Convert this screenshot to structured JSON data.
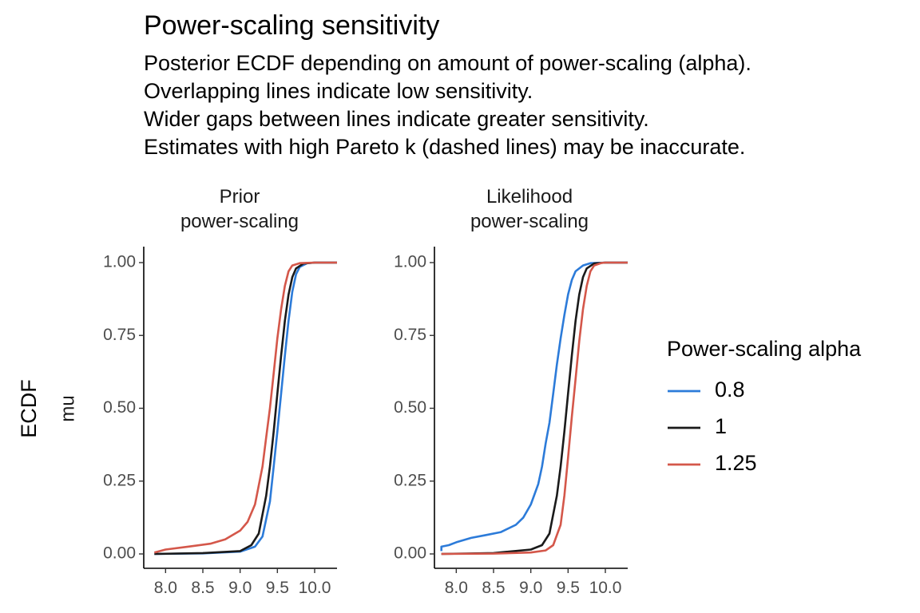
{
  "title": "Power-scaling sensitivity",
  "subtitle_lines": [
    "Posterior ECDF depending on amount of power-scaling (alpha).",
    "Overlapping lines indicate low sensitivity.",
    "Wider gaps between lines indicate greater sensitivity.",
    "Estimates with high Pareto k (dashed lines) may be inaccurate."
  ],
  "chart_data": {
    "type": "line",
    "ylabel": "ECDF",
    "row_label": "mu",
    "xlim": [
      7.75,
      10.3
    ],
    "ylim": [
      0,
      1
    ],
    "x_ticks": [
      8.0,
      8.5,
      9.0,
      9.5,
      10.0
    ],
    "x_tick_labels": [
      "8.0",
      "8.5",
      "9.0",
      "9.5",
      "10.0"
    ],
    "y_ticks": [
      0,
      0.25,
      0.5,
      0.75,
      1.0
    ],
    "y_tick_labels": [
      "0.00",
      "0.25",
      "0.50",
      "0.75",
      "1.00"
    ],
    "legend": {
      "title": "Power-scaling alpha",
      "position": "right",
      "entries": [
        {
          "label": "0.8",
          "color": "#2c7bd9"
        },
        {
          "label": "1",
          "color": "#1a1a1a"
        },
        {
          "label": "1.25",
          "color": "#d4574a"
        }
      ]
    },
    "panels": [
      {
        "label_lines": [
          "Prior",
          "power-scaling"
        ],
        "series": [
          {
            "alpha": "0.8",
            "color": "#2c7bd9",
            "points": [
              [
                7.85,
                0
              ],
              [
                8.5,
                0.002
              ],
              [
                9.0,
                0.008
              ],
              [
                9.2,
                0.025
              ],
              [
                9.3,
                0.06
              ],
              [
                9.4,
                0.18
              ],
              [
                9.45,
                0.3
              ],
              [
                9.5,
                0.42
              ],
              [
                9.55,
                0.55
              ],
              [
                9.6,
                0.68
              ],
              [
                9.65,
                0.8
              ],
              [
                9.7,
                0.9
              ],
              [
                9.75,
                0.96
              ],
              [
                9.8,
                0.985
              ],
              [
                9.9,
                0.998
              ],
              [
                10.0,
                1.0
              ],
              [
                10.3,
                1.0
              ]
            ]
          },
          {
            "alpha": "1",
            "color": "#1a1a1a",
            "points": [
              [
                7.85,
                0
              ],
              [
                8.5,
                0.003
              ],
              [
                9.0,
                0.01
              ],
              [
                9.15,
                0.03
              ],
              [
                9.25,
                0.07
              ],
              [
                9.35,
                0.2
              ],
              [
                9.4,
                0.3
              ],
              [
                9.45,
                0.42
              ],
              [
                9.5,
                0.55
              ],
              [
                9.55,
                0.68
              ],
              [
                9.6,
                0.8
              ],
              [
                9.65,
                0.89
              ],
              [
                9.7,
                0.95
              ],
              [
                9.75,
                0.98
              ],
              [
                9.85,
                0.997
              ],
              [
                10.0,
                1.0
              ],
              [
                10.3,
                1.0
              ]
            ]
          },
          {
            "alpha": "1.25",
            "color": "#d4574a",
            "points": [
              [
                7.85,
                0.005
              ],
              [
                8.0,
                0.015
              ],
              [
                8.3,
                0.025
              ],
              [
                8.6,
                0.035
              ],
              [
                8.8,
                0.05
              ],
              [
                9.0,
                0.08
              ],
              [
                9.1,
                0.11
              ],
              [
                9.2,
                0.17
              ],
              [
                9.3,
                0.3
              ],
              [
                9.35,
                0.4
              ],
              [
                9.4,
                0.5
              ],
              [
                9.45,
                0.62
              ],
              [
                9.5,
                0.74
              ],
              [
                9.55,
                0.84
              ],
              [
                9.6,
                0.92
              ],
              [
                9.65,
                0.97
              ],
              [
                9.7,
                0.99
              ],
              [
                9.8,
                0.998
              ],
              [
                10.0,
                1.0
              ],
              [
                10.3,
                1.0
              ]
            ]
          }
        ]
      },
      {
        "label_lines": [
          "Likelihood",
          "power-scaling"
        ],
        "series": [
          {
            "alpha": "0.8",
            "color": "#2c7bd9",
            "points": [
              [
                7.8,
                0.01
              ],
              [
                7.8,
                0.025
              ],
              [
                7.9,
                0.03
              ],
              [
                8.0,
                0.04
              ],
              [
                8.2,
                0.055
              ],
              [
                8.4,
                0.065
              ],
              [
                8.6,
                0.075
              ],
              [
                8.8,
                0.1
              ],
              [
                8.9,
                0.125
              ],
              [
                9.0,
                0.17
              ],
              [
                9.1,
                0.24
              ],
              [
                9.15,
                0.3
              ],
              [
                9.2,
                0.38
              ],
              [
                9.25,
                0.45
              ],
              [
                9.3,
                0.55
              ],
              [
                9.35,
                0.65
              ],
              [
                9.4,
                0.74
              ],
              [
                9.45,
                0.82
              ],
              [
                9.5,
                0.89
              ],
              [
                9.55,
                0.94
              ],
              [
                9.6,
                0.97
              ],
              [
                9.7,
                0.99
              ],
              [
                9.8,
                0.998
              ],
              [
                10.0,
                1.0
              ],
              [
                10.3,
                1.0
              ]
            ]
          },
          {
            "alpha": "1",
            "color": "#1a1a1a",
            "points": [
              [
                7.8,
                0
              ],
              [
                8.5,
                0.003
              ],
              [
                9.0,
                0.015
              ],
              [
                9.15,
                0.03
              ],
              [
                9.25,
                0.07
              ],
              [
                9.35,
                0.2
              ],
              [
                9.4,
                0.3
              ],
              [
                9.45,
                0.42
              ],
              [
                9.5,
                0.55
              ],
              [
                9.55,
                0.68
              ],
              [
                9.6,
                0.8
              ],
              [
                9.65,
                0.89
              ],
              [
                9.7,
                0.95
              ],
              [
                9.75,
                0.98
              ],
              [
                9.85,
                0.997
              ],
              [
                10.0,
                1.0
              ],
              [
                10.3,
                1.0
              ]
            ]
          },
          {
            "alpha": "1.25",
            "color": "#d4574a",
            "points": [
              [
                7.8,
                0
              ],
              [
                8.5,
                0.001
              ],
              [
                9.0,
                0.005
              ],
              [
                9.2,
                0.012
              ],
              [
                9.3,
                0.03
              ],
              [
                9.4,
                0.1
              ],
              [
                9.45,
                0.2
              ],
              [
                9.5,
                0.33
              ],
              [
                9.55,
                0.47
              ],
              [
                9.6,
                0.6
              ],
              [
                9.65,
                0.73
              ],
              [
                9.7,
                0.84
              ],
              [
                9.75,
                0.92
              ],
              [
                9.8,
                0.97
              ],
              [
                9.85,
                0.99
              ],
              [
                9.95,
                0.999
              ],
              [
                10.0,
                1.0
              ],
              [
                10.3,
                1.0
              ]
            ]
          }
        ]
      }
    ]
  }
}
